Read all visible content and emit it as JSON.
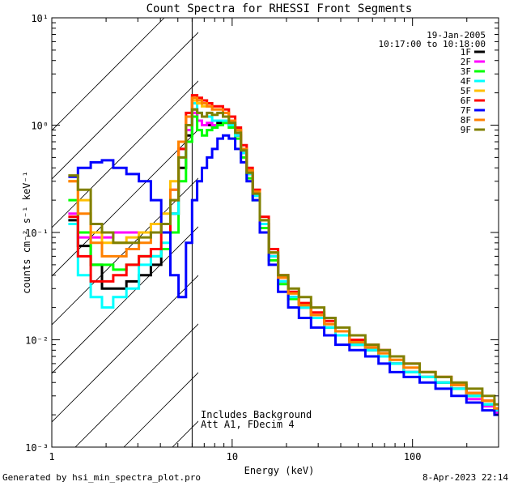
{
  "footer": {
    "left": "Generated by hsi_min_spectra_plot.pro",
    "right": "8-Apr-2023 22:14"
  },
  "chart_data": {
    "type": "line",
    "title": "Count Spectra for RHESSI Front Segments",
    "xlabel": "Energy (keV)",
    "ylabel": "counts cm⁻² s⁻¹ keV⁻¹",
    "xscale": "log",
    "yscale": "log",
    "xlim": [
      1,
      300
    ],
    "ylim": [
      0.001,
      10
    ],
    "x_ticks": [
      {
        "value": 1,
        "label": "1"
      },
      {
        "value": 10,
        "label": "10"
      },
      {
        "value": 100,
        "label": "100"
      }
    ],
    "y_ticks": [
      {
        "value": 0.001,
        "label": "10⁻³"
      },
      {
        "value": 0.01,
        "label": "10⁻²"
      },
      {
        "value": 0.1,
        "label": "10⁻¹"
      },
      {
        "value": 1,
        "label": "10⁰"
      },
      {
        "value": 10,
        "label": "10¹"
      }
    ],
    "shaded_region": {
      "x_from": 1,
      "x_to": 6,
      "pattern": "diagonal hatch",
      "boundary_line_x": 6
    },
    "header_text": [
      "19-Jan-2005",
      "10:17:00 to 10:18:00"
    ],
    "annotations": [
      "Includes Background",
      "Att A1, FDecim  4"
    ],
    "x": [
      1.3,
      1.5,
      1.8,
      2.0,
      2.4,
      2.8,
      3.3,
      3.8,
      4.3,
      4.8,
      5.3,
      5.8,
      6.2,
      6.6,
      7.0,
      7.5,
      8.0,
      8.6,
      9.2,
      10.0,
      10.8,
      11.6,
      12.5,
      13.5,
      15,
      17,
      19,
      22,
      25,
      30,
      35,
      40,
      50,
      60,
      70,
      80,
      100,
      120,
      150,
      180,
      220,
      270,
      300
    ],
    "series": [
      {
        "name": "1F",
        "color": "#000000",
        "values": [
          0.13,
          0.075,
          0.05,
          0.03,
          0.03,
          0.035,
          0.04,
          0.05,
          0.07,
          0.15,
          0.4,
          0.8,
          1.4,
          1.1,
          1.0,
          1.0,
          1.0,
          1.05,
          1.1,
          1.0,
          0.8,
          0.55,
          0.35,
          0.22,
          0.12,
          0.06,
          0.035,
          0.025,
          0.02,
          0.016,
          0.013,
          0.011,
          0.009,
          0.008,
          0.007,
          0.006,
          0.005,
          0.0045,
          0.004,
          0.0035,
          0.003,
          0.0025,
          0.0022
        ]
      },
      {
        "name": "2F",
        "color": "#ff00ff",
        "values": [
          0.15,
          0.09,
          0.09,
          0.09,
          0.1,
          0.1,
          0.1,
          0.1,
          0.12,
          0.25,
          0.6,
          0.9,
          1.3,
          1.1,
          1.0,
          1.05,
          1.0,
          1.0,
          1.05,
          1.0,
          0.8,
          0.55,
          0.35,
          0.22,
          0.12,
          0.06,
          0.035,
          0.025,
          0.02,
          0.016,
          0.013,
          0.011,
          0.009,
          0.008,
          0.007,
          0.006,
          0.005,
          0.0045,
          0.004,
          0.0035,
          0.0028,
          0.0024,
          0.0021
        ]
      },
      {
        "name": "3F",
        "color": "#00ff00",
        "values": [
          0.2,
          0.1,
          0.05,
          0.05,
          0.045,
          0.05,
          0.06,
          0.06,
          0.07,
          0.1,
          0.3,
          0.7,
          1.2,
          0.9,
          0.8,
          0.9,
          0.95,
          1.0,
          1.05,
          0.95,
          0.75,
          0.5,
          0.32,
          0.2,
          0.11,
          0.055,
          0.033,
          0.024,
          0.02,
          0.016,
          0.013,
          0.011,
          0.009,
          0.008,
          0.007,
          0.006,
          0.005,
          0.0045,
          0.004,
          0.0035,
          0.003,
          0.0025,
          0.0022
        ]
      },
      {
        "name": "4F",
        "color": "#00ffff",
        "values": [
          0.12,
          0.04,
          0.025,
          0.02,
          0.025,
          0.03,
          0.05,
          0.06,
          0.08,
          0.15,
          0.5,
          1.0,
          1.6,
          1.3,
          1.2,
          1.2,
          1.1,
          1.1,
          1.1,
          1.0,
          0.8,
          0.55,
          0.35,
          0.22,
          0.12,
          0.06,
          0.035,
          0.025,
          0.02,
          0.016,
          0.013,
          0.011,
          0.009,
          0.008,
          0.007,
          0.006,
          0.005,
          0.0045,
          0.004,
          0.0035,
          0.003,
          0.0025,
          0.0022
        ]
      },
      {
        "name": "5F",
        "color": "#ffc000",
        "values": [
          0.3,
          0.2,
          0.1,
          0.08,
          0.08,
          0.09,
          0.1,
          0.12,
          0.15,
          0.3,
          0.7,
          1.2,
          1.7,
          1.6,
          1.5,
          1.5,
          1.4,
          1.4,
          1.3,
          1.1,
          0.9,
          0.6,
          0.38,
          0.24,
          0.13,
          0.065,
          0.038,
          0.027,
          0.021,
          0.017,
          0.014,
          0.012,
          0.0095,
          0.0085,
          0.0075,
          0.0065,
          0.0055,
          0.005,
          0.0045,
          0.0038,
          0.0032,
          0.0027,
          0.0023
        ]
      },
      {
        "name": "6F",
        "color": "#ff0000",
        "values": [
          0.14,
          0.06,
          0.035,
          0.035,
          0.04,
          0.05,
          0.06,
          0.07,
          0.1,
          0.2,
          0.6,
          1.3,
          1.9,
          1.8,
          1.7,
          1.6,
          1.5,
          1.5,
          1.4,
          1.2,
          0.95,
          0.65,
          0.4,
          0.25,
          0.14,
          0.07,
          0.04,
          0.028,
          0.022,
          0.018,
          0.015,
          0.012,
          0.01,
          0.009,
          0.008,
          0.007,
          0.006,
          0.005,
          0.0045,
          0.0038,
          0.0032,
          0.0027,
          0.0023
        ]
      },
      {
        "name": "7F",
        "color": "#0000ff",
        "values": [
          0.33,
          0.4,
          0.45,
          0.47,
          0.4,
          0.35,
          0.3,
          0.2,
          0.1,
          0.04,
          0.025,
          0.08,
          0.2,
          0.3,
          0.4,
          0.5,
          0.6,
          0.75,
          0.8,
          0.75,
          0.6,
          0.45,
          0.3,
          0.2,
          0.1,
          0.05,
          0.028,
          0.02,
          0.016,
          0.013,
          0.011,
          0.009,
          0.008,
          0.007,
          0.006,
          0.005,
          0.0045,
          0.004,
          0.0035,
          0.003,
          0.0026,
          0.0022,
          0.002
        ]
      },
      {
        "name": "8F",
        "color": "#ff8000",
        "values": [
          0.3,
          0.15,
          0.08,
          0.06,
          0.06,
          0.07,
          0.08,
          0.1,
          0.12,
          0.25,
          0.7,
          1.2,
          1.8,
          1.7,
          1.6,
          1.5,
          1.4,
          1.4,
          1.3,
          1.1,
          0.9,
          0.6,
          0.38,
          0.24,
          0.13,
          0.065,
          0.038,
          0.027,
          0.021,
          0.017,
          0.014,
          0.012,
          0.0095,
          0.0085,
          0.0075,
          0.0065,
          0.0055,
          0.005,
          0.0045,
          0.0038,
          0.0032,
          0.0027,
          0.0023
        ]
      },
      {
        "name": "9F",
        "color": "#808000",
        "values": [
          0.34,
          0.25,
          0.12,
          0.1,
          0.08,
          0.08,
          0.09,
          0.1,
          0.12,
          0.2,
          0.5,
          1.0,
          1.4,
          1.3,
          1.2,
          1.3,
          1.25,
          1.3,
          1.2,
          1.05,
          0.85,
          0.58,
          0.36,
          0.23,
          0.13,
          0.065,
          0.04,
          0.03,
          0.025,
          0.02,
          0.016,
          0.013,
          0.011,
          0.009,
          0.008,
          0.007,
          0.006,
          0.005,
          0.0045,
          0.004,
          0.0035,
          0.003,
          0.0025
        ]
      }
    ]
  }
}
